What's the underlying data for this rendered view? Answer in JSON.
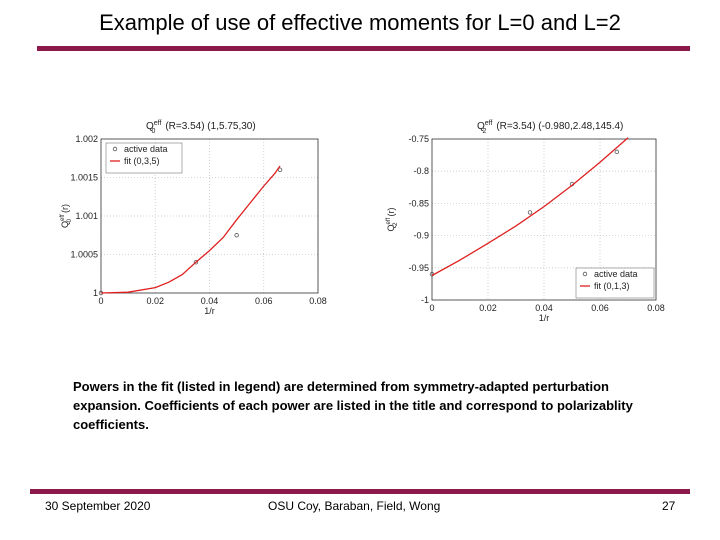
{
  "slide": {
    "title": "Example of use of effective moments for L=0 and L=2",
    "caption": "Powers in the fit (listed in legend) are determined from symmetry-adapted perturbation expansion. Coefficients of each power are listed in the title and correspond to polarizablity coefficients.",
    "footer": {
      "date": "30 September 2020",
      "authors": "OSU Coy, Baraban, Field, Wong",
      "page": "27"
    },
    "accent_color": "#8b1a4b"
  },
  "chart_data": [
    {
      "type": "line",
      "title_symbol": "Q",
      "title_symbol_sub": "0",
      "title_symbol_sup": "eff",
      "title_text": "(R=3.54) (1,5.75,30)",
      "ylabel_symbol": "Q",
      "ylabel_sub": "0",
      "ylabel_sup": "eff",
      "ylabel_arg": "(r)",
      "xlabel": "1/r",
      "xlim": [
        0,
        0.08
      ],
      "ylim": [
        1,
        1.002
      ],
      "xticks": [
        "0",
        "0.02",
        "0.04",
        "0.06",
        "0.08"
      ],
      "yticks": [
        "1",
        "1.0005",
        "1.001",
        "1.0015",
        "1.002"
      ],
      "grid": true,
      "legend_position": "top-left",
      "series": [
        {
          "name": "active data",
          "kind": "markers",
          "color": "#555555",
          "x": [
            0,
            0.035,
            0.05,
            0.066
          ],
          "y": [
            1.0,
            1.0004,
            1.00075,
            1.0016
          ]
        },
        {
          "name": "fit (0,3,5)",
          "kind": "line",
          "color": "#e02020",
          "x": [
            0,
            0.01,
            0.02,
            0.025,
            0.03,
            0.035,
            0.04,
            0.045,
            0.05,
            0.055,
            0.06,
            0.064,
            0.066
          ],
          "y": [
            1.0,
            1.00001,
            1.00007,
            1.00014,
            1.00024,
            1.0004,
            1.00055,
            1.00072,
            1.00095,
            1.00117,
            1.00139,
            1.00155,
            1.00165
          ]
        }
      ]
    },
    {
      "type": "line",
      "title_symbol": "Q",
      "title_symbol_sub": "2",
      "title_symbol_sup": "eff",
      "title_text": "(R=3.54) (-0.980,2.48,145.4)",
      "ylabel_symbol": "Q",
      "ylabel_sub": "2",
      "ylabel_sup": "eff",
      "ylabel_arg": "(r)",
      "xlabel": "1/r",
      "xlim": [
        0,
        0.08
      ],
      "ylim": [
        -1,
        -0.75
      ],
      "xticks": [
        "0",
        "0.02",
        "0.04",
        "0.06",
        "0.08"
      ],
      "yticks": [
        "-0.75",
        "-0.8",
        "-0.85",
        "-0.9",
        "-0.95",
        "-1"
      ],
      "grid": true,
      "legend_position": "bottom-right",
      "series": [
        {
          "name": "active data",
          "kind": "markers",
          "color": "#555555",
          "x": [
            0,
            0.035,
            0.05,
            0.066
          ],
          "y": [
            -0.96,
            -0.864,
            -0.82,
            -0.77
          ]
        },
        {
          "name": "fit (0,1,3)",
          "kind": "line",
          "color": "#e02020",
          "x": [
            0,
            0.01,
            0.02,
            0.03,
            0.04,
            0.05,
            0.06,
            0.07
          ],
          "y": [
            -0.962,
            -0.938,
            -0.912,
            -0.885,
            -0.855,
            -0.822,
            -0.786,
            -0.748
          ]
        }
      ]
    }
  ]
}
